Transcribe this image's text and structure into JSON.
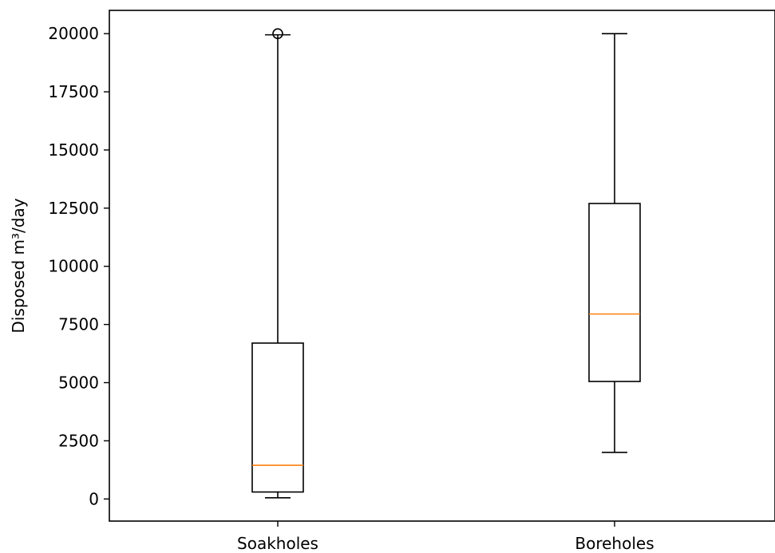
{
  "chart_data": {
    "type": "box",
    "ylabel": "Disposed m³/day",
    "xlabel": "",
    "title": "",
    "ylim": [
      -950,
      21000
    ],
    "yticks": [
      0,
      2500,
      5000,
      7500,
      10000,
      12500,
      15000,
      17500,
      20000
    ],
    "ytick_labels": [
      "0",
      "2500",
      "5000",
      "7500",
      "10000",
      "12500",
      "15000",
      "17500",
      "20000"
    ],
    "grid": false,
    "categories": [
      "Soakholes",
      "Boreholes"
    ],
    "boxes": [
      {
        "name": "Soakholes",
        "whisker_low": 50,
        "q1": 300,
        "median": 1450,
        "q3": 6700,
        "whisker_high": 19950,
        "outliers": [
          20000
        ]
      },
      {
        "name": "Boreholes",
        "whisker_low": 2000,
        "q1": 5050,
        "median": 7950,
        "q3": 12700,
        "whisker_high": 20000,
        "outliers": []
      }
    ],
    "colors": {
      "box": "#000000",
      "median": "#ff7f0e"
    }
  }
}
